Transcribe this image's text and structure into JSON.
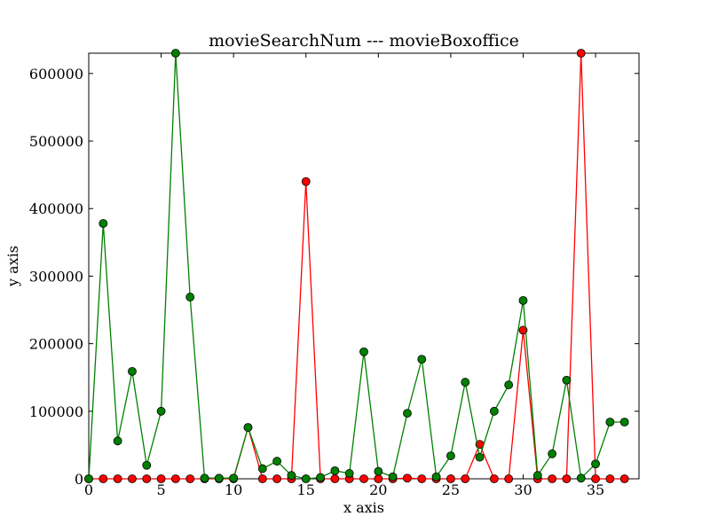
{
  "chart_data": {
    "type": "line",
    "title": "movieSearchNum --- movieBoxoffice",
    "xlabel": "x axis",
    "ylabel": "y axis",
    "xlim": [
      0,
      38
    ],
    "ylim": [
      0,
      630000
    ],
    "xticks": [
      0,
      5,
      10,
      15,
      20,
      25,
      30,
      35
    ],
    "yticks": [
      0,
      100000,
      200000,
      300000,
      400000,
      500000,
      600000
    ],
    "x": [
      0,
      1,
      2,
      3,
      4,
      5,
      6,
      7,
      8,
      9,
      10,
      11,
      12,
      13,
      14,
      15,
      16,
      17,
      18,
      19,
      20,
      21,
      22,
      23,
      24,
      25,
      26,
      27,
      28,
      29,
      30,
      31,
      32,
      33,
      34,
      35,
      36,
      37
    ],
    "grid": false,
    "series": [
      {
        "color": "#ff0000",
        "marker": "circle",
        "values": [
          0,
          0,
          0,
          0,
          0,
          0,
          0,
          0,
          0,
          0,
          0,
          76000,
          0,
          0,
          0,
          440000,
          0,
          0,
          0,
          0,
          0,
          0,
          1000,
          0,
          0,
          0,
          0,
          51000,
          0,
          0,
          220000,
          0,
          0,
          0,
          630000,
          0,
          0,
          0
        ]
      },
      {
        "color": "#008000",
        "marker": "circle",
        "values": [
          0,
          378000,
          56000,
          159000,
          20000,
          100000,
          630000,
          269000,
          1000,
          1000,
          1000,
          76000,
          15000,
          26000,
          5000,
          0,
          2000,
          12000,
          8000,
          188000,
          11000,
          3000,
          97000,
          177000,
          3000,
          34000,
          143000,
          32000,
          100000,
          139000,
          264000,
          5000,
          37000,
          146000,
          1000,
          22000,
          84000,
          84000
        ]
      }
    ]
  }
}
